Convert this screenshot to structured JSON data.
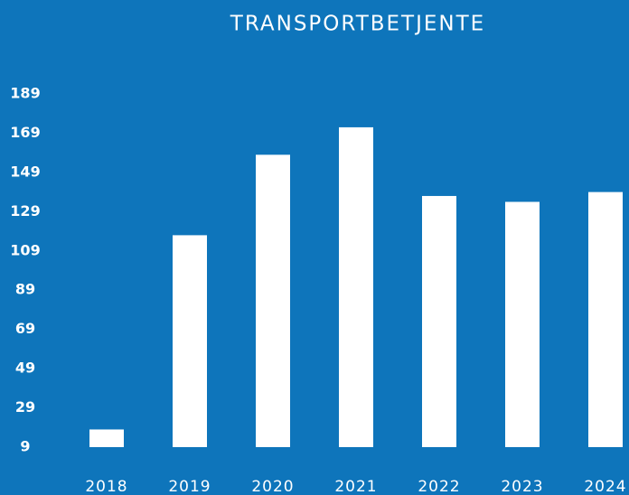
{
  "chart_data": {
    "type": "bar",
    "title": "TRANSPORTBETJENTE",
    "categories": [
      "2018",
      "2019",
      "2020",
      "2021",
      "2022",
      "2023",
      "2024"
    ],
    "values": [
      18,
      117,
      158,
      172,
      137,
      134,
      139
    ],
    "color": "#ffffff",
    "ylim": [
      9,
      189
    ],
    "yticks": [
      9,
      29,
      49,
      69,
      89,
      109,
      129,
      149,
      169,
      189
    ],
    "grid": false
  }
}
